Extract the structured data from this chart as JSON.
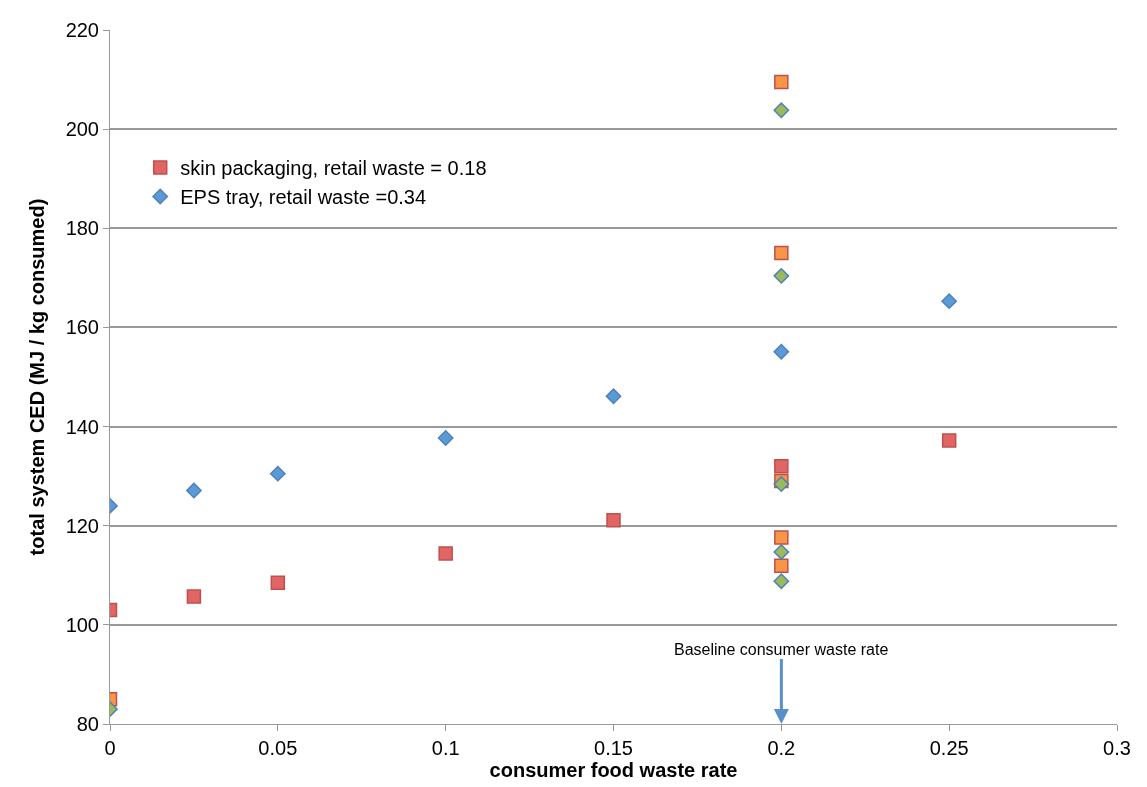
{
  "chart_data": {
    "type": "scatter",
    "xlabel": "consumer food waste rate",
    "ylabel": "total system CED (MJ / kg consumed)",
    "xlim": [
      0,
      0.3
    ],
    "xticks": [
      0,
      0.05,
      0.1,
      0.15,
      0.2,
      0.25,
      0.3
    ],
    "ylim": [
      80,
      220
    ],
    "yticks": [
      80,
      100,
      120,
      140,
      160,
      180,
      200,
      220
    ],
    "grid": "y",
    "legend": "top left",
    "series": [
      {
        "name": "skin packaging, retail waste = 0.18",
        "color": "#e06666",
        "marker": "square",
        "x": [
          0,
          0.025,
          0.05,
          0.1,
          0.15,
          0.2,
          0.25
        ],
        "values": [
          103,
          105.7,
          108.5,
          114.4,
          121.1,
          132,
          137.2
        ]
      },
      {
        "name": "EPS tray, retail waste =0.34",
        "color": "#5b9bd5",
        "marker": "diamond",
        "x": [
          0,
          0.025,
          0.05,
          0.1,
          0.15,
          0.2,
          0.25
        ],
        "values": [
          124,
          127.1,
          130.5,
          137.7,
          146.1,
          155.1,
          165.3
        ]
      },
      {
        "color": "#f79646",
        "marker": "square",
        "x": [
          0,
          0.2,
          0.2,
          0.2,
          0.2,
          0.2
        ],
        "values": [
          85,
          209.5,
          175,
          129,
          117.6,
          111.9
        ]
      },
      {
        "color": "#9bbb59",
        "marker": "diamond",
        "x": [
          0,
          0.2,
          0.2,
          0.2,
          0.2,
          0.2
        ],
        "values": [
          83,
          203.8,
          170.4,
          128.4,
          114.7,
          108.8
        ]
      }
    ],
    "annotations": [
      "Baseline consumer waste rate"
    ]
  }
}
